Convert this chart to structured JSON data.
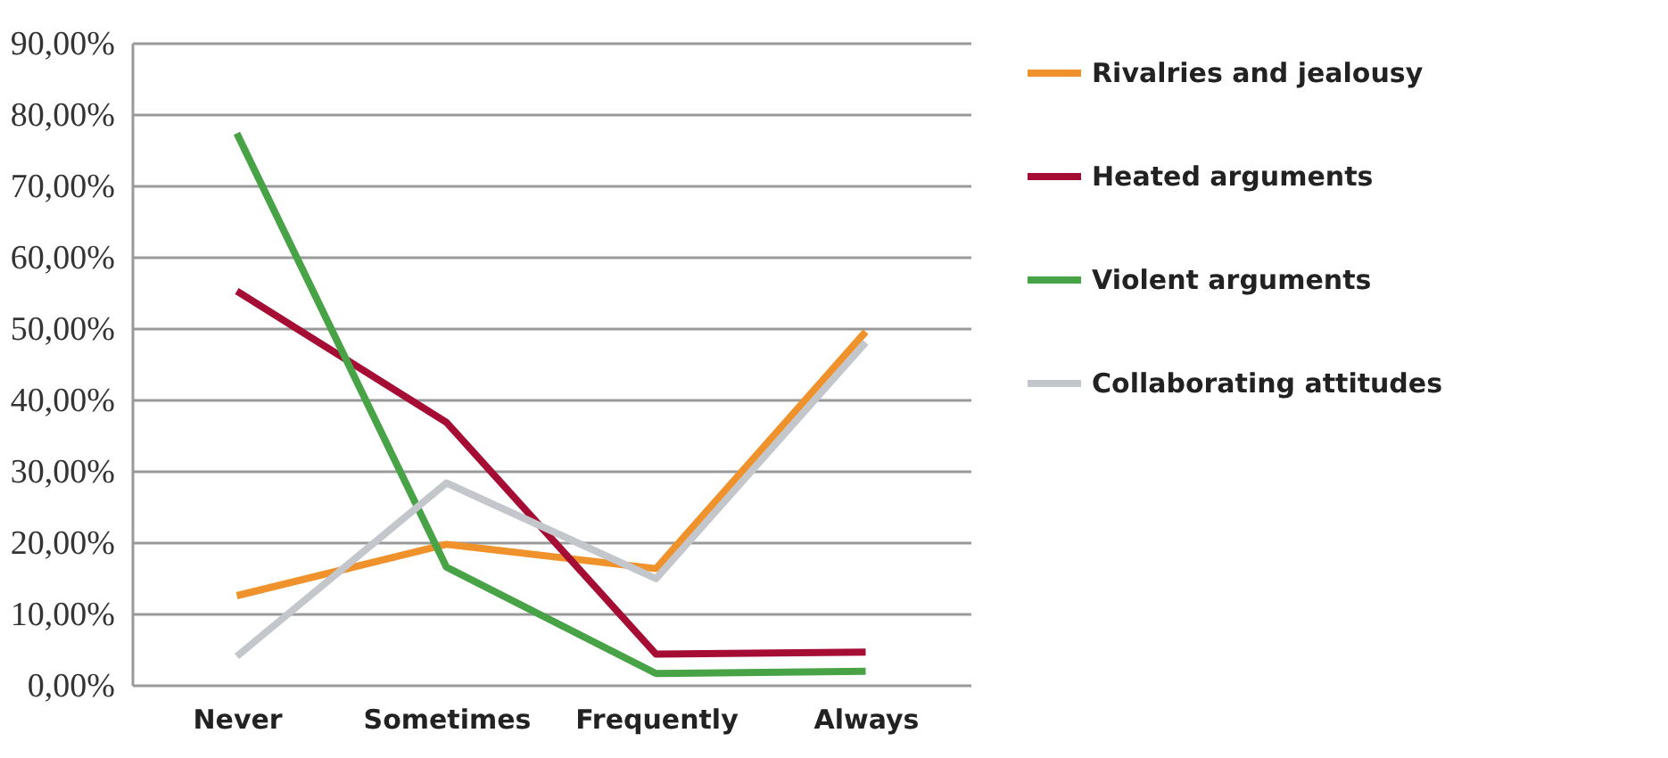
{
  "chart_data": {
    "type": "line",
    "categories": [
      "Never",
      "Sometimes",
      "Frequently",
      "Always"
    ],
    "series": [
      {
        "name": "Rivalries and jealousy",
        "color": "#f0922b",
        "values": [
          12.5,
          19.7,
          16.3,
          49.5
        ]
      },
      {
        "name": "Heated arguments",
        "color": "#a50d35",
        "values": [
          55.2,
          36.8,
          4.3,
          4.6
        ]
      },
      {
        "name": "Violent arguments",
        "color": "#48a246",
        "values": [
          77.3,
          16.5,
          1.6,
          1.9
        ]
      },
      {
        "name": "Collaborating attitudes",
        "color": "#c3c6cb",
        "values": [
          4.0,
          28.3,
          14.9,
          48.0
        ]
      }
    ],
    "ylim": [
      0,
      90
    ],
    "yticks": [
      {
        "value": 0,
        "label": "0,00%"
      },
      {
        "value": 10,
        "label": "10,00%"
      },
      {
        "value": 20,
        "label": "20,00%"
      },
      {
        "value": 30,
        "label": "30,00%"
      },
      {
        "value": 40,
        "label": "40,00%"
      },
      {
        "value": 50,
        "label": "50,00%"
      },
      {
        "value": 60,
        "label": "60,00%"
      },
      {
        "value": 70,
        "label": "70,00%"
      },
      {
        "value": 80,
        "label": "80,00%"
      },
      {
        "value": 90,
        "label": "90,00%"
      }
    ],
    "grid": "y",
    "legend": "right",
    "marker": "none",
    "line_style": "solid"
  }
}
